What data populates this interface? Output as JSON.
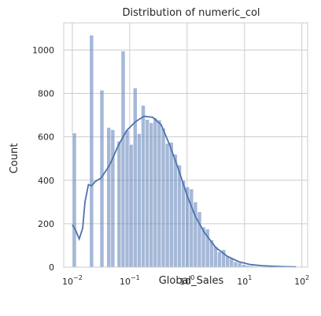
{
  "chart_data": {
    "type": "histogram",
    "title": "Distribution of numeric_col",
    "xlabel": "Global_Sales",
    "ylabel": "Count",
    "xscale": "log",
    "xlim_log10": [
      -2.15,
      2.1
    ],
    "ylim": [
      0,
      1125
    ],
    "grid": true,
    "x_ticks": [
      {
        "base": "10",
        "exp": "−2",
        "log10": -2
      },
      {
        "base": "10",
        "exp": "−1",
        "log10": -1
      },
      {
        "base": "10",
        "exp": "0",
        "log10": 0
      },
      {
        "base": "10",
        "exp": "1",
        "log10": 1
      },
      {
        "base": "10",
        "exp": "2",
        "log10": 2
      }
    ],
    "y_ticks": [
      0,
      200,
      400,
      600,
      800,
      1000
    ],
    "bins": [
      {
        "log_left": -2.0,
        "log_right": -1.93,
        "count": 618
      },
      {
        "log_left": -1.7,
        "log_right": -1.63,
        "count": 1068
      },
      {
        "log_left": -1.52,
        "log_right": -1.45,
        "count": 815
      },
      {
        "log_left": -1.4,
        "log_right": -1.33,
        "count": 643
      },
      {
        "log_left": -1.33,
        "log_right": -1.26,
        "count": 633
      },
      {
        "log_left": -1.22,
        "log_right": -1.15,
        "count": 580
      },
      {
        "log_left": -1.15,
        "log_right": -1.08,
        "count": 995
      },
      {
        "log_left": -1.08,
        "log_right": -1.01,
        "count": 630
      },
      {
        "log_left": -1.01,
        "log_right": -0.94,
        "count": 565
      },
      {
        "log_left": -0.94,
        "log_right": -0.87,
        "count": 825
      },
      {
        "log_left": -0.87,
        "log_right": -0.8,
        "count": 615
      },
      {
        "log_left": -0.8,
        "log_right": -0.73,
        "count": 745
      },
      {
        "log_left": -0.73,
        "log_right": -0.66,
        "count": 680
      },
      {
        "log_left": -0.66,
        "log_right": -0.59,
        "count": 665
      },
      {
        "log_left": -0.59,
        "log_right": -0.52,
        "count": 688
      },
      {
        "log_left": -0.52,
        "log_right": -0.45,
        "count": 678
      },
      {
        "log_left": -0.45,
        "log_right": -0.38,
        "count": 640
      },
      {
        "log_left": -0.38,
        "log_right": -0.31,
        "count": 570
      },
      {
        "log_left": -0.31,
        "log_right": -0.24,
        "count": 575
      },
      {
        "log_left": -0.24,
        "log_right": -0.17,
        "count": 520
      },
      {
        "log_left": -0.17,
        "log_right": -0.1,
        "count": 470
      },
      {
        "log_left": -0.1,
        "log_right": -0.03,
        "count": 400
      },
      {
        "log_left": -0.03,
        "log_right": 0.04,
        "count": 370
      },
      {
        "log_left": 0.04,
        "log_right": 0.11,
        "count": 360
      },
      {
        "log_left": 0.11,
        "log_right": 0.18,
        "count": 300
      },
      {
        "log_left": 0.18,
        "log_right": 0.25,
        "count": 255
      },
      {
        "log_left": 0.25,
        "log_right": 0.32,
        "count": 185
      },
      {
        "log_left": 0.32,
        "log_right": 0.39,
        "count": 175
      },
      {
        "log_left": 0.39,
        "log_right": 0.46,
        "count": 125
      },
      {
        "log_left": 0.46,
        "log_right": 0.53,
        "count": 95
      },
      {
        "log_left": 0.53,
        "log_right": 0.6,
        "count": 70
      },
      {
        "log_left": 0.6,
        "log_right": 0.67,
        "count": 80
      },
      {
        "log_left": 0.67,
        "log_right": 0.74,
        "count": 50
      },
      {
        "log_left": 0.74,
        "log_right": 0.81,
        "count": 40
      },
      {
        "log_left": 0.81,
        "log_right": 0.88,
        "count": 25
      },
      {
        "log_left": 0.88,
        "log_right": 0.95,
        "count": 20
      },
      {
        "log_left": 0.95,
        "log_right": 1.02,
        "count": 12
      },
      {
        "log_left": 1.02,
        "log_right": 1.09,
        "count": 8
      },
      {
        "log_left": 1.09,
        "log_right": 1.16,
        "count": 6
      },
      {
        "log_left": 1.16,
        "log_right": 1.23,
        "count": 4
      },
      {
        "log_left": 1.23,
        "log_right": 1.3,
        "count": 3
      },
      {
        "log_left": 1.3,
        "log_right": 1.37,
        "count": 2
      },
      {
        "log_left": 1.37,
        "log_right": 1.44,
        "count": 2
      },
      {
        "log_left": 1.44,
        "log_right": 1.51,
        "count": 1
      },
      {
        "log_left": 1.51,
        "log_right": 1.58,
        "count": 1
      },
      {
        "log_left": 1.58,
        "log_right": 1.65,
        "count": 1
      }
    ],
    "kde": {
      "log_x": [
        -2.0,
        -1.95,
        -1.88,
        -1.82,
        -1.78,
        -1.72,
        -1.66,
        -1.6,
        -1.5,
        -1.35,
        -1.2,
        -1.05,
        -0.9,
        -0.75,
        -0.6,
        -0.45,
        -0.3,
        -0.15,
        0.0,
        0.15,
        0.3,
        0.5,
        0.7,
        0.9,
        1.1,
        1.3,
        1.5,
        1.7,
        1.9
      ],
      "count": [
        195,
        175,
        130,
        180,
        300,
        380,
        375,
        395,
        410,
        470,
        560,
        630,
        670,
        695,
        690,
        655,
        560,
        450,
        330,
        230,
        160,
        90,
        50,
        25,
        12,
        7,
        4,
        2,
        1
      ]
    }
  }
}
